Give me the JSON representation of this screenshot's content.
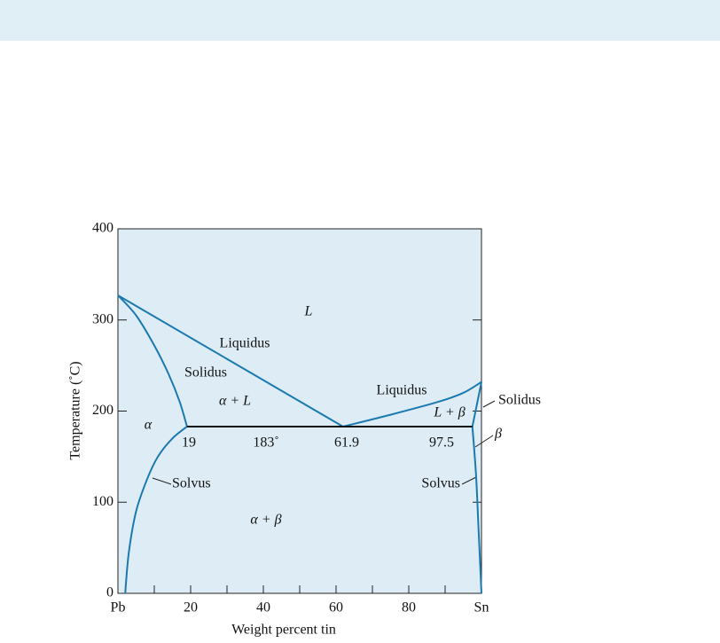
{
  "chart_data": {
    "type": "phase-diagram",
    "xlabel": "Weight percent tin",
    "ylabel": "Temperature (˚C)",
    "xlim": [
      0,
      100
    ],
    "ylim": [
      0,
      400
    ],
    "xticks": [
      {
        "value": 0,
        "label": "Pb"
      },
      20,
      40,
      60,
      80,
      {
        "value": 100,
        "label": "Sn"
      }
    ],
    "xminor_ticks": [
      10,
      30,
      50,
      70,
      90
    ],
    "yticks": [
      0,
      100,
      200,
      300,
      400
    ],
    "series": [
      {
        "color": "#1a7ab0",
        "x": [
          0,
          61.9
        ],
        "values": [
          327,
          183
        ]
      },
      {
        "color": "#1a7ab0",
        "x": [
          61.9,
          75,
          88,
          95,
          100
        ],
        "values": [
          183,
          196,
          210,
          220,
          232
        ]
      },
      {
        "color": "#1a7ab0",
        "x": [
          0,
          5,
          10,
          14,
          17,
          19
        ],
        "values": [
          327,
          305,
          272,
          240,
          210,
          183
        ]
      },
      {
        "color": "#1a7ab0",
        "x": [
          19,
          15,
          11,
          8,
          5,
          3,
          2
        ],
        "values": [
          183,
          170,
          150,
          125,
          90,
          45,
          0
        ]
      },
      {
        "color": "#1a7ab0",
        "x": [
          97.5,
          100
        ],
        "values": [
          183,
          232
        ]
      },
      {
        "color": "#1a7ab0",
        "x": [
          97.5,
          98.5,
          99.2,
          100
        ],
        "values": [
          183,
          130,
          70,
          0
        ]
      },
      {
        "color": "#111111",
        "x": [
          19,
          97.5
        ],
        "values": [
          183,
          183
        ]
      }
    ],
    "annotations": [
      "L",
      "Liquidus",
      "Solidus",
      "α + L",
      "Liquidus",
      "L + β",
      "Solidus",
      "α",
      "19",
      "183˚",
      "61.9",
      "97.5",
      "β",
      "Solvus",
      "Solvus",
      "α + β"
    ]
  }
}
